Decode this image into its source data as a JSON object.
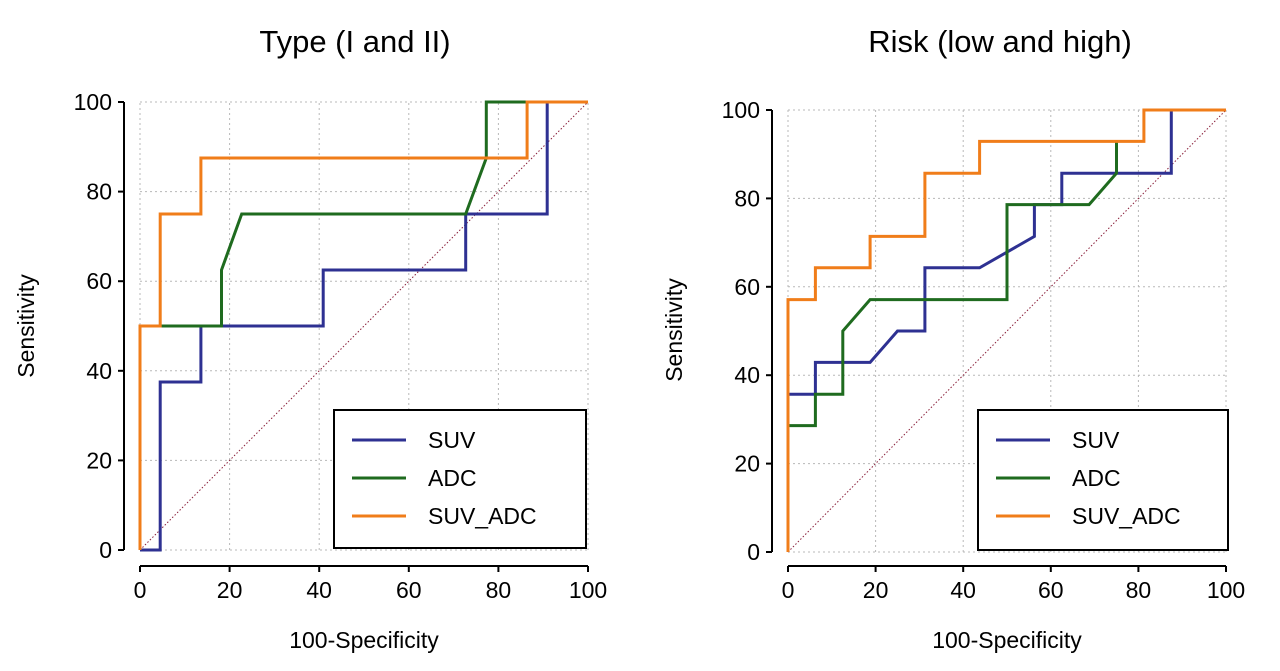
{
  "chart_data": [
    {
      "type": "line",
      "title": "Type (I and II)",
      "xlabel": "100-Specificity",
      "ylabel": "Sensitivity",
      "xlim": [
        0,
        100
      ],
      "ylim": [
        0,
        100
      ],
      "xticks": [
        0,
        20,
        40,
        60,
        80,
        100
      ],
      "yticks": [
        0,
        20,
        40,
        60,
        80,
        100
      ],
      "grid": true,
      "diagonal_reference": true,
      "legend_position": "bottom-right",
      "series": [
        {
          "name": "SUV",
          "color": "#2e3192",
          "x": [
            0,
            4.5,
            4.5,
            13.6,
            13.6,
            40.9,
            40.9,
            72.7,
            72.7,
            90.9,
            90.9
          ],
          "y": [
            0,
            0,
            37.5,
            37.5,
            50,
            50,
            62.5,
            62.5,
            75,
            75,
            100
          ]
        },
        {
          "name": "ADC",
          "color": "#1f6b1f",
          "x": [
            0,
            4.5,
            18.2,
            18.2,
            22.7,
            72.7,
            77.3,
            77.3,
            86.4,
            100
          ],
          "y": [
            50,
            50,
            50,
            62.5,
            75,
            75,
            87.5,
            100,
            100,
            100
          ]
        },
        {
          "name": "SUV_ADC",
          "color": "#f07d1a",
          "x": [
            0,
            0,
            4.5,
            4.5,
            13.6,
            13.6,
            86.4,
            86.4,
            100
          ],
          "y": [
            0,
            50,
            50,
            75,
            75,
            87.5,
            87.5,
            100,
            100
          ]
        }
      ]
    },
    {
      "type": "line",
      "title": "Risk (low and high)",
      "xlabel": "100-Specificity",
      "ylabel": "Sensitivity",
      "xlim": [
        0,
        100
      ],
      "ylim": [
        0,
        100
      ],
      "xticks": [
        0,
        20,
        40,
        60,
        80,
        100
      ],
      "yticks": [
        0,
        20,
        40,
        60,
        80,
        100
      ],
      "grid": true,
      "diagonal_reference": true,
      "legend_position": "bottom-right",
      "series": [
        {
          "name": "SUV",
          "color": "#2e3192",
          "x": [
            0,
            6.25,
            6.25,
            18.75,
            25,
            31.25,
            31.25,
            43.75,
            56.25,
            56.25,
            62.5,
            62.5,
            87.5,
            87.5
          ],
          "y": [
            35.7,
            35.7,
            42.9,
            42.9,
            50,
            50,
            64.3,
            64.3,
            71.4,
            78.6,
            78.6,
            85.7,
            85.7,
            100
          ]
        },
        {
          "name": "ADC",
          "color": "#1f6b1f",
          "x": [
            0,
            6.25,
            6.25,
            12.5,
            12.5,
            18.75,
            50,
            50,
            68.75,
            75,
            75
          ],
          "y": [
            28.6,
            28.6,
            35.7,
            35.7,
            50,
            57.1,
            57.1,
            78.6,
            78.6,
            85.7,
            92.9
          ]
        },
        {
          "name": "SUV_ADC",
          "color": "#f07d1a",
          "x": [
            0,
            0,
            6.25,
            6.25,
            18.75,
            18.75,
            31.25,
            31.25,
            43.75,
            43.75,
            81.25,
            81.25,
            100
          ],
          "y": [
            0,
            57.1,
            57.1,
            64.3,
            64.3,
            71.4,
            71.4,
            85.7,
            85.7,
            92.9,
            92.9,
            100,
            100
          ]
        }
      ]
    }
  ]
}
